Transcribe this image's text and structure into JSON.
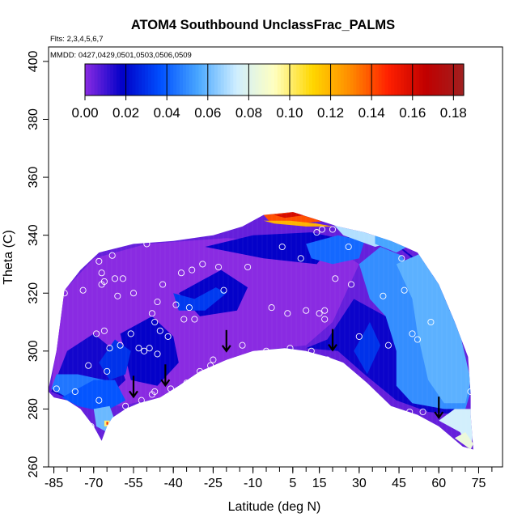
{
  "chart_data": {
    "type": "heatmap",
    "title": "ATOM4 Southbound UnclassFrac_PALMS",
    "subtitle_flights": "Flts: 2,3,4,5,6,7",
    "subtitle_dates": "MMDD: 0427,0429,0501,0503,0506,0509",
    "xlabel": "Latitude (deg N)",
    "ylabel": "Theta (C)",
    "xlim": [
      -87,
      84
    ],
    "ylim": [
      260,
      405
    ],
    "x_ticks": [
      -85,
      -70,
      -55,
      -40,
      -25,
      -10,
      5,
      15,
      30,
      45,
      60,
      75
    ],
    "y_ticks": [
      260,
      280,
      300,
      320,
      340,
      360,
      380,
      400
    ],
    "colorbar": {
      "range": [
        0,
        0.185
      ],
      "tick_values": [
        0.0,
        0.02,
        0.04,
        0.06,
        0.08,
        0.1,
        0.12,
        0.14,
        0.16,
        0.18
      ],
      "tick_labels": [
        "0.00",
        "0.02",
        "0.04",
        "0.06",
        "0.08",
        "0.10",
        "0.12",
        "0.14",
        "0.16",
        "0.18"
      ],
      "colors": [
        "#8a2be2",
        "#0000c8",
        "#0050ff",
        "#4aa8ff",
        "#cfeeff",
        "#ffffc0",
        "#ffd700",
        "#ff8c00",
        "#ff2000",
        "#c00000",
        "#a02020"
      ]
    },
    "domain_outline": [
      [
        -87,
        287
      ],
      [
        -84,
        300
      ],
      [
        -81,
        321
      ],
      [
        -75,
        328
      ],
      [
        -68,
        334
      ],
      [
        -55,
        337
      ],
      [
        -40,
        338
      ],
      [
        -25,
        340
      ],
      [
        -14,
        343
      ],
      [
        -6,
        347
      ],
      [
        5,
        348
      ],
      [
        12,
        346
      ],
      [
        22,
        343
      ],
      [
        32,
        341
      ],
      [
        42,
        338
      ],
      [
        52,
        334
      ],
      [
        60,
        323
      ],
      [
        66,
        310
      ],
      [
        71,
        298
      ],
      [
        72,
        285
      ],
      [
        72,
        278
      ],
      [
        73,
        266
      ],
      [
        69,
        267
      ],
      [
        60,
        274
      ],
      [
        52,
        278
      ],
      [
        42,
        281
      ],
      [
        33,
        289
      ],
      [
        24,
        296
      ],
      [
        18,
        298
      ],
      [
        10,
        300
      ],
      [
        2,
        301
      ],
      [
        -10,
        300
      ],
      [
        -20,
        297
      ],
      [
        -30,
        293
      ],
      [
        -38,
        288
      ],
      [
        -45,
        284
      ],
      [
        -53,
        282
      ],
      [
        -58,
        280
      ],
      [
        -63,
        277
      ],
      [
        -65,
        274
      ],
      [
        -67,
        269
      ],
      [
        -70,
        274
      ],
      [
        -75,
        280
      ],
      [
        -80,
        283
      ],
      [
        -85,
        284
      ],
      [
        -87,
        286
      ]
    ],
    "field_patches": [
      {
        "value": 0.0,
        "points": [
          [
            -86,
            286
          ],
          [
            -82,
            320
          ],
          [
            -70,
            332
          ],
          [
            -50,
            337
          ],
          [
            -20,
            339
          ],
          [
            0,
            338
          ],
          [
            20,
            336
          ],
          [
            30,
            330
          ],
          [
            20,
            310
          ],
          [
            10,
            302
          ],
          [
            -10,
            300
          ],
          [
            -30,
            293
          ],
          [
            -45,
            284
          ],
          [
            -60,
            281
          ],
          [
            -75,
            283
          ]
        ]
      },
      {
        "value": 0.016,
        "points": [
          [
            -86,
            286
          ],
          [
            -80,
            300
          ],
          [
            -70,
            306
          ],
          [
            -62,
            300
          ],
          [
            -58,
            290
          ],
          [
            -66,
            283
          ],
          [
            -78,
            283
          ]
        ]
      },
      {
        "value": 0.018,
        "points": [
          [
            -60,
            306
          ],
          [
            -48,
            312
          ],
          [
            -40,
            305
          ],
          [
            -38,
            296
          ],
          [
            -46,
            288
          ],
          [
            -56,
            290
          ]
        ]
      },
      {
        "value": 0.018,
        "points": [
          [
            -38,
            320
          ],
          [
            -22,
            328
          ],
          [
            -12,
            322
          ],
          [
            -16,
            314
          ],
          [
            -30,
            312
          ]
        ]
      },
      {
        "value": 0.018,
        "points": [
          [
            -28,
            336
          ],
          [
            -10,
            340
          ],
          [
            12,
            341
          ],
          [
            22,
            339
          ],
          [
            14,
            330
          ],
          [
            -6,
            332
          ]
        ]
      },
      {
        "value": 0.017,
        "points": [
          [
            14,
            336
          ],
          [
            28,
            340
          ],
          [
            44,
            337
          ],
          [
            54,
            330
          ],
          [
            60,
            318
          ],
          [
            52,
            310
          ],
          [
            40,
            312
          ],
          [
            28,
            318
          ],
          [
            18,
            304
          ],
          [
            10,
            301
          ],
          [
            22,
            300
          ],
          [
            32,
            292
          ],
          [
            44,
            283
          ],
          [
            56,
            279
          ],
          [
            68,
            278
          ],
          [
            70,
            296
          ],
          [
            66,
            312
          ],
          [
            58,
            326
          ],
          [
            46,
            335
          ],
          [
            30,
            340
          ]
        ]
      },
      {
        "value": 0.045,
        "points": [
          [
            -86,
            287
          ],
          [
            -84,
            292
          ],
          [
            -76,
            292
          ],
          [
            -66,
            290
          ],
          [
            -60,
            286
          ],
          [
            -66,
            282
          ],
          [
            -78,
            283
          ]
        ]
      },
      {
        "value": 0.038,
        "points": [
          [
            -82,
            284
          ],
          [
            -70,
            290
          ],
          [
            -62,
            290
          ],
          [
            -58,
            283
          ],
          [
            -66,
            279
          ],
          [
            -76,
            281
          ]
        ]
      },
      {
        "value": 0.06,
        "points": [
          [
            -70,
            280
          ],
          [
            -64,
            281
          ],
          [
            -62,
            276
          ],
          [
            -65,
            272
          ],
          [
            -69,
            274
          ]
        ]
      },
      {
        "value": 0.03,
        "points": [
          [
            -68,
            296
          ],
          [
            -62,
            304
          ],
          [
            -56,
            300
          ],
          [
            -58,
            292
          ],
          [
            -64,
            290
          ]
        ]
      },
      {
        "value": 0.032,
        "points": [
          [
            -40,
            320
          ],
          [
            -32,
            318
          ],
          [
            -24,
            322
          ],
          [
            -20,
            320
          ],
          [
            -28,
            314
          ],
          [
            -38,
            314
          ]
        ]
      },
      {
        "value": 0.03,
        "points": [
          [
            28,
            300
          ],
          [
            34,
            310
          ],
          [
            38,
            302
          ],
          [
            33,
            292
          ]
        ]
      },
      {
        "value": 0.05,
        "points": [
          [
            30,
            330
          ],
          [
            38,
            336
          ],
          [
            46,
            333
          ],
          [
            54,
            320
          ],
          [
            60,
            312
          ],
          [
            66,
            306
          ],
          [
            70,
            298
          ],
          [
            72,
            286
          ],
          [
            70,
            280
          ],
          [
            62,
            280
          ],
          [
            50,
            282
          ],
          [
            44,
            288
          ],
          [
            44,
            300
          ],
          [
            40,
            312
          ],
          [
            34,
            318
          ]
        ]
      },
      {
        "value": 0.058,
        "points": [
          [
            44,
            330
          ],
          [
            54,
            334
          ],
          [
            62,
            320
          ],
          [
            68,
            306
          ],
          [
            72,
            290
          ],
          [
            70,
            282
          ],
          [
            62,
            282
          ],
          [
            56,
            290
          ],
          [
            52,
            306
          ],
          [
            50,
            318
          ]
        ]
      },
      {
        "value": 0.042,
        "points": [
          [
            10,
            337
          ],
          [
            22,
            340
          ],
          [
            32,
            338
          ],
          [
            30,
            332
          ],
          [
            20,
            330
          ],
          [
            12,
            332
          ]
        ]
      },
      {
        "value": 0.07,
        "points": [
          [
            20,
            344
          ],
          [
            34,
            341
          ],
          [
            44,
            338
          ],
          [
            36,
            336
          ],
          [
            24,
            340
          ]
        ]
      },
      {
        "value": 0.055,
        "points": [
          [
            36,
            340
          ],
          [
            48,
            336
          ],
          [
            44,
            334
          ],
          [
            36,
            337
          ]
        ]
      },
      {
        "value": 0.075,
        "points": [
          [
            60,
            276
          ],
          [
            68,
            272
          ],
          [
            72,
            266
          ],
          [
            73,
            272
          ],
          [
            72,
            280
          ],
          [
            66,
            280
          ]
        ]
      },
      {
        "value": 0.085,
        "points": [
          [
            66,
            270
          ],
          [
            72,
            266
          ],
          [
            73,
            268
          ],
          [
            70,
            272
          ]
        ]
      },
      {
        "value": 0.14,
        "points": [
          [
            -6,
            347
          ],
          [
            5,
            348
          ],
          [
            12,
            346
          ],
          [
            18,
            345
          ],
          [
            8,
            344
          ],
          [
            -4,
            345
          ]
        ]
      },
      {
        "value": 0.12,
        "points": [
          [
            -6,
            345
          ],
          [
            4,
            345
          ],
          [
            14,
            344
          ],
          [
            20,
            343
          ],
          [
            10,
            343
          ],
          [
            -2,
            344
          ]
        ]
      },
      {
        "value": 0.16,
        "points": [
          [
            -2,
            347
          ],
          [
            6,
            348
          ],
          [
            10,
            347
          ],
          [
            2,
            346
          ]
        ]
      },
      {
        "value": 0.1,
        "points": [
          [
            -66,
            276
          ],
          [
            -64,
            276
          ],
          [
            -64,
            274
          ],
          [
            -66,
            274
          ]
        ]
      },
      {
        "value": 0.15,
        "points": [
          [
            -65.2,
            275.6
          ],
          [
            -64.6,
            275.6
          ],
          [
            -64.6,
            274.6
          ],
          [
            -65.2,
            274.6
          ]
        ]
      }
    ],
    "sample_points": [
      [
        -84,
        287
      ],
      [
        -81,
        320
      ],
      [
        -77,
        286
      ],
      [
        -74,
        321
      ],
      [
        -72,
        295
      ],
      [
        -71,
        274
      ],
      [
        -69,
        306
      ],
      [
        -68,
        283
      ],
      [
        -68,
        331
      ],
      [
        -67,
        323
      ],
      [
        -67,
        327
      ],
      [
        -66,
        324
      ],
      [
        -66,
        307
      ],
      [
        -65,
        293
      ],
      [
        -64,
        301
      ],
      [
        -63,
        333
      ],
      [
        -62,
        325
      ],
      [
        -61,
        319
      ],
      [
        -60,
        302
      ],
      [
        -59,
        325
      ],
      [
        -58,
        281
      ],
      [
        -56,
        306
      ],
      [
        -55,
        320
      ],
      [
        -53,
        301
      ],
      [
        -52,
        283
      ],
      [
        -51,
        300
      ],
      [
        -50,
        337
      ],
      [
        -49,
        301
      ],
      [
        -48,
        313
      ],
      [
        -48,
        285
      ],
      [
        -47,
        286
      ],
      [
        -47,
        310
      ],
      [
        -46,
        317
      ],
      [
        -46,
        299
      ],
      [
        -45,
        307
      ],
      [
        -44,
        323
      ],
      [
        -42,
        305
      ],
      [
        -41,
        287
      ],
      [
        -39,
        316
      ],
      [
        -37,
        327
      ],
      [
        -36,
        311
      ],
      [
        -35,
        289
      ],
      [
        -34,
        315
      ],
      [
        -33,
        328
      ],
      [
        -32,
        311
      ],
      [
        -30,
        293
      ],
      [
        -29,
        330
      ],
      [
        -26,
        295
      ],
      [
        -25,
        297
      ],
      [
        -23,
        329
      ],
      [
        -21,
        321
      ],
      [
        -14,
        302
      ],
      [
        -12,
        329
      ],
      [
        -5,
        300
      ],
      [
        -3,
        315
      ],
      [
        1,
        336
      ],
      [
        3,
        313
      ],
      [
        4,
        301
      ],
      [
        8,
        332
      ],
      [
        10,
        314
      ],
      [
        12,
        300
      ],
      [
        14,
        341
      ],
      [
        15,
        313
      ],
      [
        16,
        342
      ],
      [
        17,
        311
      ],
      [
        17,
        314
      ],
      [
        18,
        297
      ],
      [
        20,
        342
      ],
      [
        21,
        325
      ],
      [
        26,
        336
      ],
      [
        27,
        323
      ],
      [
        28,
        291
      ],
      [
        30,
        305
      ],
      [
        39,
        319
      ],
      [
        41,
        302
      ],
      [
        43,
        279
      ],
      [
        46,
        332
      ],
      [
        47,
        321
      ],
      [
        49,
        279
      ],
      [
        50,
        306
      ],
      [
        52,
        304
      ],
      [
        54,
        279
      ],
      [
        55,
        333
      ],
      [
        57,
        310
      ],
      [
        60,
        272
      ],
      [
        72,
        286
      ]
    ],
    "arrow_latitudes": [
      -55,
      -43,
      -20,
      20,
      60
    ]
  }
}
